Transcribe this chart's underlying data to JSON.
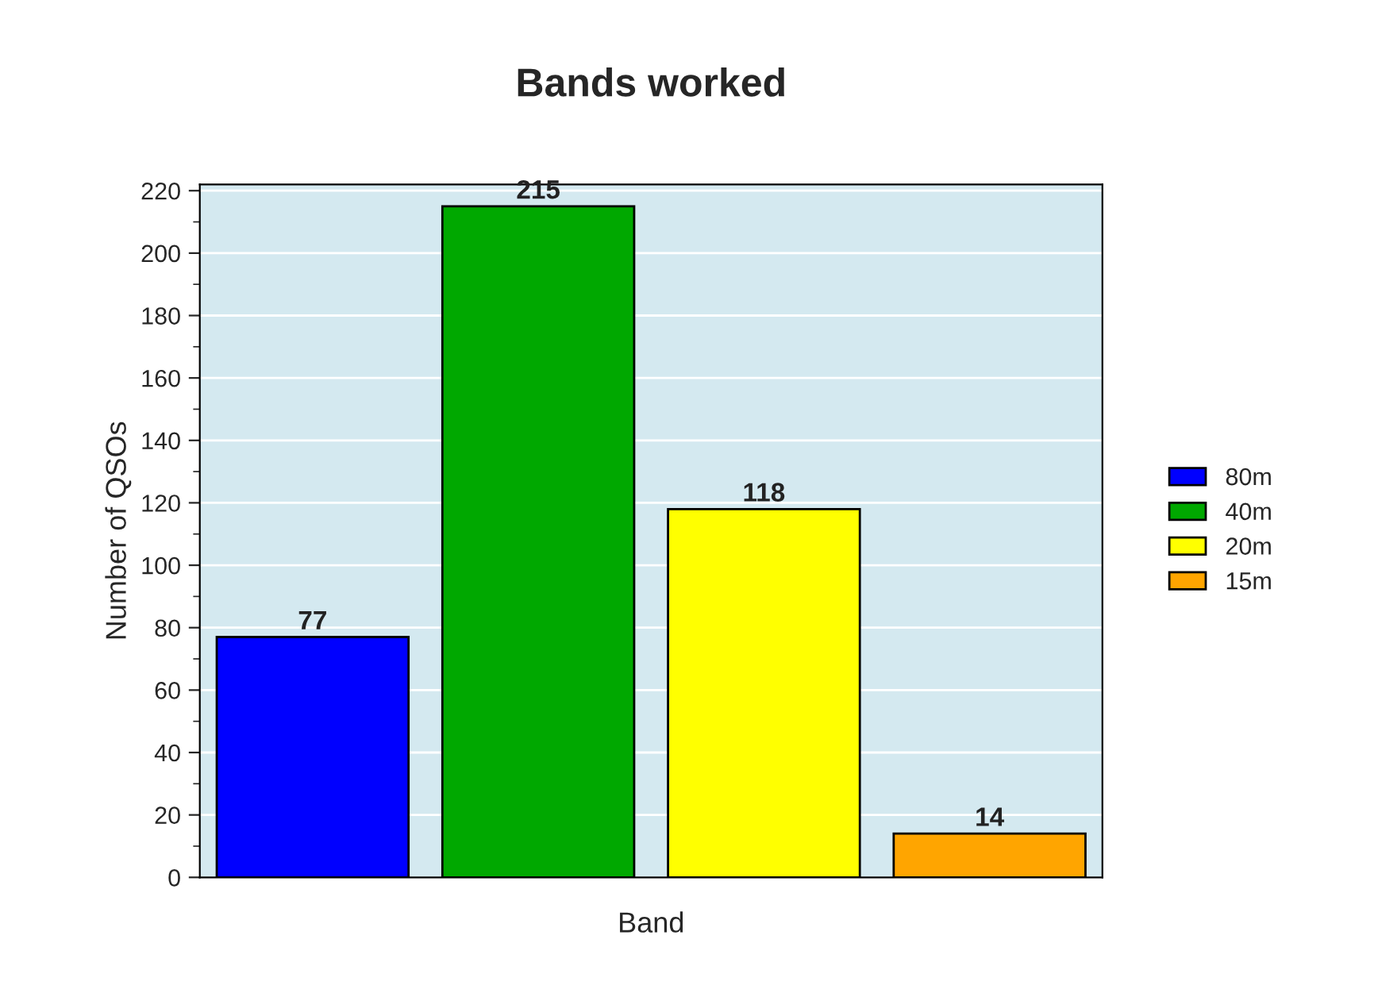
{
  "chart_data": {
    "type": "bar",
    "title": "Bands worked",
    "xlabel": "Band",
    "ylabel": "Number of QSOs",
    "categories": [
      null,
      null,
      null,
      null
    ],
    "series": [
      {
        "name": "80m",
        "color": "#0000ff",
        "values": [
          77,
          null,
          null,
          null
        ]
      },
      {
        "name": "40m",
        "color": "#00a800",
        "values": [
          null,
          215,
          null,
          null
        ]
      },
      {
        "name": "20m",
        "color": "#ffff00",
        "values": [
          null,
          null,
          118,
          null
        ]
      },
      {
        "name": "15m",
        "color": "#ffa500",
        "values": [
          null,
          null,
          null,
          14
        ]
      }
    ],
    "ylim": [
      0,
      222
    ],
    "yticks": [
      0,
      20,
      40,
      60,
      80,
      100,
      120,
      140,
      160,
      180,
      200,
      220
    ],
    "grid": "y",
    "legend": "right",
    "data_labels": true
  }
}
